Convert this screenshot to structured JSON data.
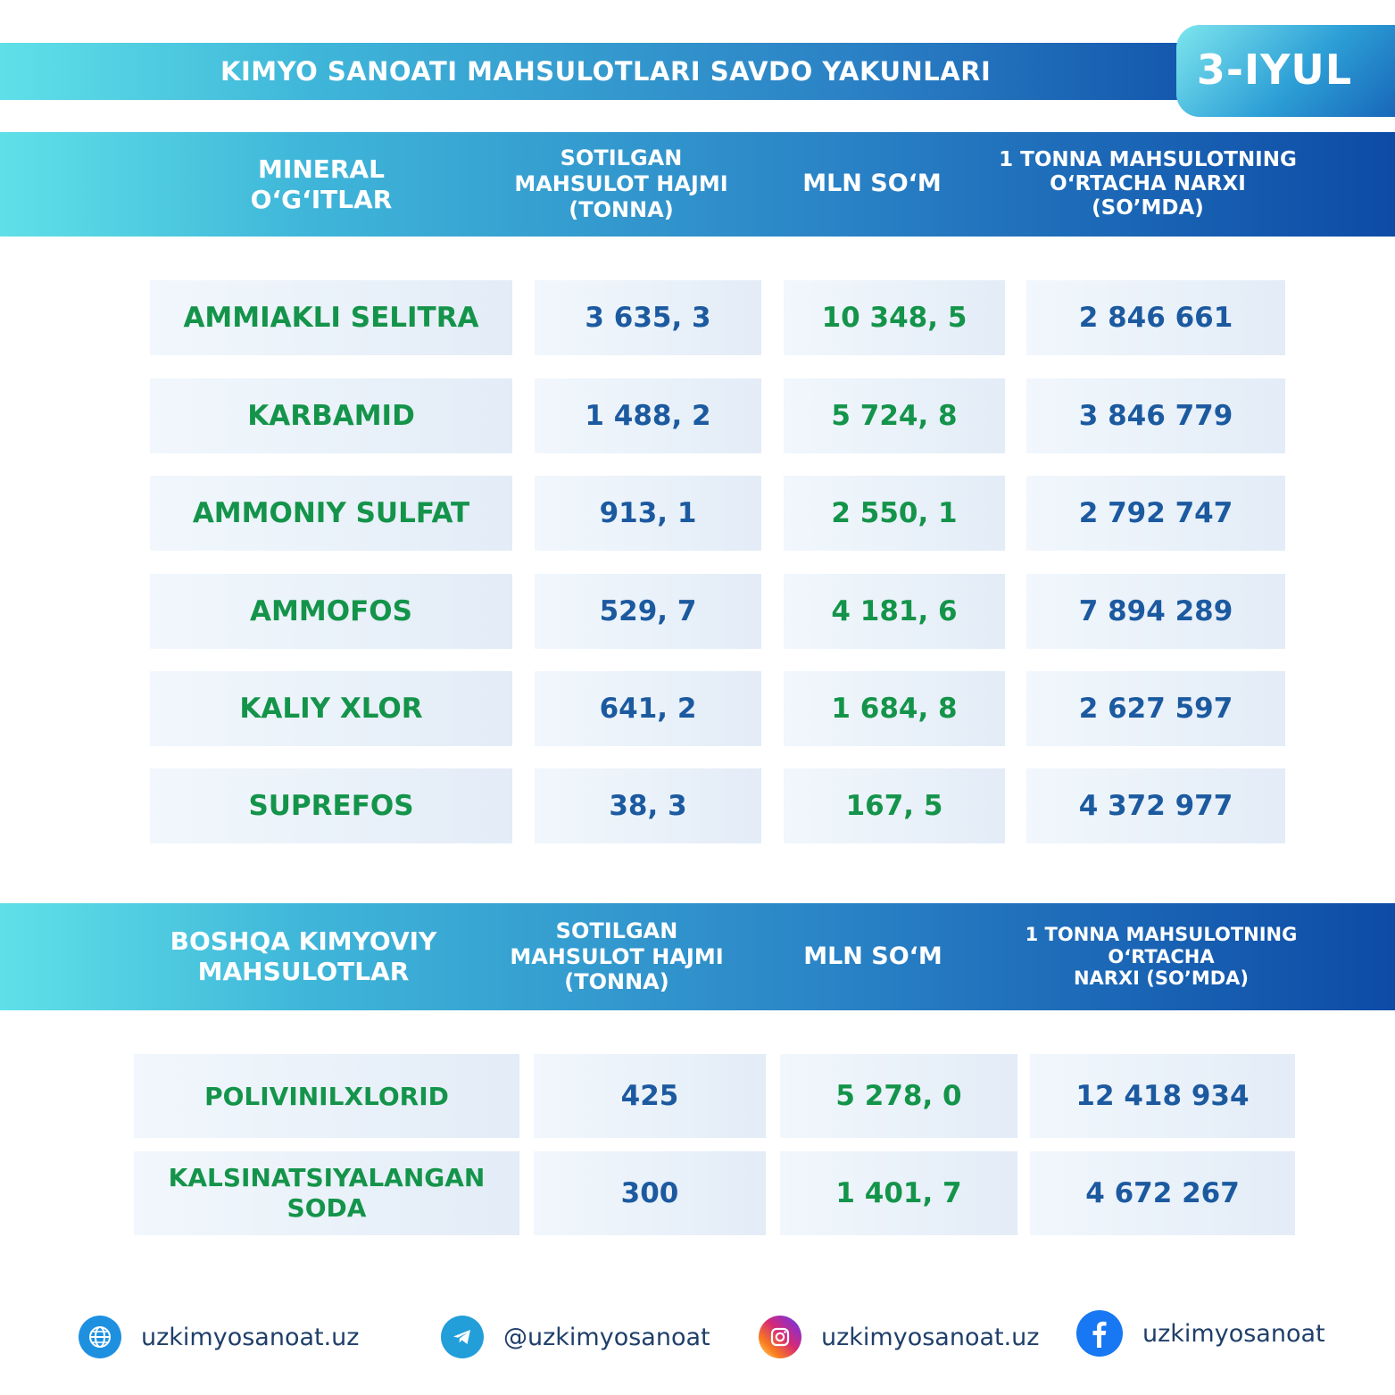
{
  "header": {
    "title": "KIMYO SANOATI MAHSULOTLARI SAVDO YAKUNLARI",
    "date": "3-IYUL"
  },
  "table1": {
    "columns": [
      "MINERAL\nO‘G‘ITLAR",
      "SOTILGAN\nMAHSULOT HAJMI\n(TONNA)",
      "MLN SO‘M",
      "1 TONNA MAHSULOTNING\nO‘RTACHA NARXI\n(SO’MDA)"
    ],
    "rows": [
      {
        "name": "AMMIAKLI SELITRA",
        "volume": "3 635, 3",
        "mln": "10 348, 5",
        "price": "2 846 661"
      },
      {
        "name": "KARBAMID",
        "volume": "1 488, 2",
        "mln": "5 724, 8",
        "price": "3 846 779"
      },
      {
        "name": "AMMONIY SULFAT",
        "volume": "913, 1",
        "mln": "2 550, 1",
        "price": "2 792 747"
      },
      {
        "name": "AMMOFOS",
        "volume": "529, 7",
        "mln": "4 181, 6",
        "price": "7 894 289"
      },
      {
        "name": "KALIY XLOR",
        "volume": "641, 2",
        "mln": "1 684, 8",
        "price": "2 627 597"
      },
      {
        "name": "SUPREFOS",
        "volume": "38, 3",
        "mln": "167, 5",
        "price": "4 372 977"
      }
    ]
  },
  "table2": {
    "columns": [
      "BOSHQA KIMYOVIY\nMAHSULOTLAR",
      "SOTILGAN\nMAHSULOT HAJMI\n(TONNA)",
      "MLN SO‘M",
      "1 TONNA MAHSULOTNING\nO‘RTACHA\nNARXI (SO’MDA)"
    ],
    "rows": [
      {
        "name": "POLIVINILXLORID",
        "volume": "425",
        "mln": "5 278, 0",
        "price": "12 418 934"
      },
      {
        "name": "KALSINATSIYALANGAN\nSODA",
        "volume": "300",
        "mln": "1 401, 7",
        "price": "4 672 267"
      }
    ]
  },
  "footer": [
    {
      "icon": "globe-icon",
      "text": "uzkimyosanoat.uz",
      "color": "#1e90e0"
    },
    {
      "icon": "telegram-icon",
      "text": "@uzkimyosanoat",
      "color": "#229ed9"
    },
    {
      "icon": "instagram-icon",
      "text": "uzkimyosanoat.uz",
      "color": "#d62976"
    },
    {
      "icon": "facebook-icon",
      "text": "uzkimyosanoat",
      "color": "#1877f2"
    }
  ]
}
